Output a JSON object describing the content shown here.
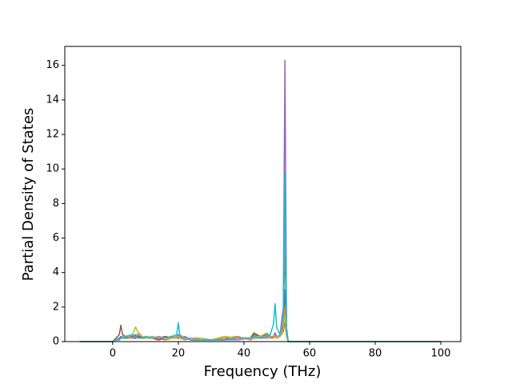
{
  "chart_data": {
    "type": "line",
    "x_label": "Frequency (THz)",
    "y_label": "Partial Density of States",
    "xlim": [
      -14.6,
      106.1
    ],
    "ylim": [
      0,
      17.1
    ],
    "xticks": [
      0,
      20,
      40,
      60,
      80,
      100
    ],
    "yticks": [
      0,
      2,
      4,
      6,
      8,
      10,
      12,
      14,
      16
    ],
    "x": [
      -10,
      0,
      1,
      2,
      2.5,
      3,
      4,
      6,
      7,
      8,
      9,
      10,
      12,
      14,
      16,
      18,
      19.5,
      20,
      20.5,
      22,
      24,
      27,
      30,
      34,
      38,
      42,
      43,
      45,
      47,
      48,
      49,
      49.5,
      50,
      51,
      52,
      52.5,
      53,
      53.5,
      55,
      100
    ],
    "series": [
      {
        "color": "#1f77b4",
        "values": [
          0,
          0,
          0.1,
          0.2,
          0.3,
          0.2,
          0.2,
          0.3,
          0.4,
          0.3,
          0.2,
          0.3,
          0.2,
          0.2,
          0.1,
          0.2,
          0.3,
          0.4,
          0.2,
          0.2,
          0.1,
          0.1,
          0.1,
          0.2,
          0.1,
          0.2,
          0.3,
          0.2,
          0.3,
          0.2,
          0.3,
          0.5,
          0.3,
          0.3,
          1.0,
          3.0,
          0.5,
          0,
          0,
          0
        ]
      },
      {
        "color": "#ff7f0e",
        "values": [
          0,
          0,
          0.1,
          0.2,
          0.2,
          0.3,
          0.2,
          0.2,
          0.3,
          0.4,
          0.2,
          0.2,
          0.3,
          0.2,
          0.1,
          0.2,
          0.3,
          0.3,
          0.2,
          0.1,
          0.2,
          0.2,
          0.1,
          0.2,
          0.3,
          0.1,
          0.2,
          0.3,
          0.2,
          0.3,
          0.2,
          0.4,
          0.2,
          0.4,
          0.8,
          2.0,
          0.4,
          0,
          0,
          0
        ]
      },
      {
        "color": "#2ca02c",
        "values": [
          0,
          0,
          0.1,
          0.1,
          0.2,
          0.3,
          0.2,
          0.3,
          0.3,
          0.2,
          0.3,
          0.2,
          0.2,
          0.3,
          0.2,
          0.2,
          0.2,
          0.3,
          0.2,
          0.2,
          0.1,
          0.1,
          0.1,
          0.1,
          0.2,
          0.2,
          0.4,
          0.3,
          0.5,
          0.3,
          0.2,
          0.3,
          0.3,
          0.3,
          1.5,
          5.4,
          0.6,
          0,
          0,
          0
        ]
      },
      {
        "color": "#d62728",
        "values": [
          0,
          0,
          0.1,
          0.2,
          0.2,
          0.2,
          0.3,
          0.2,
          0.2,
          0.3,
          0.2,
          0.3,
          0.2,
          0.1,
          0.2,
          0.3,
          0.2,
          0.2,
          0.3,
          0.2,
          0.1,
          0.1,
          0.1,
          0.1,
          0.2,
          0.2,
          0.3,
          0.2,
          0.2,
          0.3,
          0.2,
          0.3,
          0.2,
          0.3,
          0.6,
          1.2,
          0.3,
          0,
          0,
          0
        ]
      },
      {
        "color": "#9467bd",
        "values": [
          0,
          0,
          0.1,
          0.1,
          0.2,
          0.2,
          0.3,
          0.2,
          0.3,
          0.2,
          0.2,
          0.3,
          0.2,
          0.2,
          0.2,
          0.3,
          0.2,
          0.2,
          0.2,
          0.3,
          0.1,
          0.1,
          0.1,
          0.1,
          0.1,
          0.2,
          0.2,
          0.2,
          0.3,
          0.2,
          0.2,
          0.3,
          0.2,
          0.4,
          2.0,
          16.3,
          0.8,
          0,
          0,
          0
        ]
      },
      {
        "color": "#8c564b",
        "values": [
          0,
          0,
          0.2,
          0.4,
          0.95,
          0.4,
          0.3,
          0.2,
          0.2,
          0.3,
          0.2,
          0.2,
          0.2,
          0.2,
          0.3,
          0.2,
          0.2,
          0.2,
          0.3,
          0.2,
          0.1,
          0.1,
          0.1,
          0.1,
          0.2,
          0.2,
          0.5,
          0.3,
          0.4,
          0.3,
          0.2,
          0.3,
          0.2,
          0.3,
          0.9,
          1.2,
          0.3,
          0,
          0,
          0
        ]
      },
      {
        "color": "#e377c2",
        "values": [
          0,
          0,
          0.1,
          0.2,
          0.2,
          0.3,
          0.3,
          0.2,
          0.3,
          0.5,
          0.3,
          0.2,
          0.2,
          0.3,
          0.2,
          0.2,
          0.3,
          0.3,
          0.4,
          0.2,
          0.2,
          0.1,
          0.1,
          0.1,
          0.1,
          0.2,
          0.2,
          0.2,
          0.2,
          0.3,
          0.3,
          0.4,
          0.3,
          0.3,
          1.2,
          7.7,
          0.5,
          0,
          0,
          0
        ]
      },
      {
        "color": "#bcbd22",
        "values": [
          0,
          0,
          0.1,
          0.2,
          0.2,
          0.2,
          0.3,
          0.4,
          0.85,
          0.4,
          0.3,
          0.2,
          0.3,
          0.2,
          0.2,
          0.2,
          0.2,
          0.3,
          0.2,
          0.2,
          0.1,
          0.2,
          0.1,
          0.3,
          0.2,
          0.2,
          0.3,
          0.3,
          0.5,
          0.2,
          0.2,
          0.3,
          0.2,
          0.3,
          0.7,
          1.5,
          0.3,
          0,
          0,
          0
        ]
      },
      {
        "color": "#17becf",
        "values": [
          0,
          0,
          0.1,
          0.2,
          0.2,
          0.2,
          0.3,
          0.4,
          0.3,
          0.2,
          0.2,
          0.3,
          0.2,
          0.2,
          0.2,
          0.3,
          0.4,
          1.1,
          0.3,
          0.2,
          0.1,
          0.1,
          0.1,
          0.1,
          0.2,
          0.2,
          0.3,
          0.2,
          0.3,
          0.4,
          1.0,
          2.2,
          0.8,
          0.4,
          1.5,
          9.8,
          0.6,
          0,
          0,
          0
        ]
      }
    ]
  }
}
